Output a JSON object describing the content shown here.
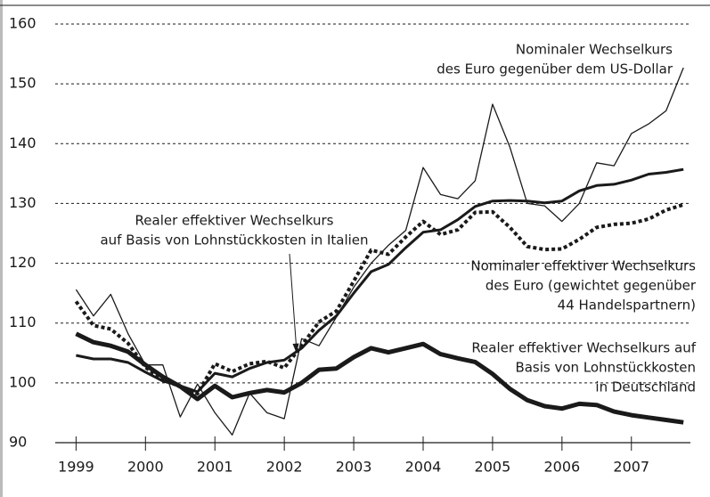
{
  "chart_data": {
    "type": "line",
    "x": [
      1999,
      1999.25,
      1999.5,
      1999.75,
      2000,
      2000.25,
      2000.5,
      2000.75,
      2001,
      2001.25,
      2001.5,
      2001.75,
      2002,
      2002.25,
      2002.5,
      2002.75,
      2003,
      2003.25,
      2003.5,
      2003.75,
      2004,
      2004.25,
      2004.5,
      2004.75,
      2005,
      2005.25,
      2005.5,
      2005.75,
      2006,
      2006.25,
      2006.5,
      2006.75,
      2007,
      2007.25,
      2007.5,
      2007.75
    ],
    "series": [
      {
        "name": [
          "Nominaler Wechselkurs",
          "des Euro gegenüber dem US-Dollar"
        ],
        "color": "#1a1a1a",
        "style": "thin",
        "values": [
          115.6,
          111.2,
          114.8,
          108.2,
          103,
          103,
          94.3,
          99.8,
          95,
          91.3,
          98.3,
          95,
          94,
          107.4,
          106.2,
          111,
          116,
          120,
          123,
          125.5,
          136,
          131.5,
          130.8,
          133.8,
          146.6,
          139.4,
          130,
          129.6,
          127,
          130,
          136.8,
          136.3,
          141.7,
          143.3,
          145.5,
          152.7
        ]
      },
      {
        "name": [
          "Realer effektiver Wechselkurs",
          "auf Basis von Lohnstückkosten in Italien"
        ],
        "color": "#1a1a1a",
        "style": "medium",
        "values": [
          104.6,
          104,
          104,
          103.4,
          101.8,
          100.3,
          99.5,
          98.5,
          101.6,
          101,
          102.4,
          103.4,
          103.8,
          105.8,
          108.8,
          111.2,
          115,
          118.6,
          119.8,
          122.6,
          125.2,
          125.6,
          127.3,
          129.5,
          130.4,
          130.5,
          130.4,
          130.1,
          130.4,
          132.1,
          133,
          133.2,
          133.9,
          134.9,
          135.2,
          135.7
        ]
      },
      {
        "name": [
          "Nominaler effektiver Wechselkurs",
          "des Euro (gewichtet gegenüber",
          "44 Handelspartnern)"
        ],
        "color": "#1a1a1a",
        "style": "dotted",
        "values": [
          113.6,
          109.6,
          109,
          106.6,
          102.6,
          100.5,
          99.4,
          98.2,
          103.2,
          101.9,
          103.2,
          103.6,
          102.5,
          106.2,
          110.2,
          112,
          117,
          122.2,
          121.5,
          124.4,
          127,
          124.8,
          125.6,
          128.5,
          128.6,
          126,
          122.8,
          122.3,
          122.4,
          124,
          126,
          126.5,
          126.7,
          127.4,
          128.9,
          129.8
        ]
      },
      {
        "name": [
          "Realer effektiver Wechselkurs auf",
          "Basis von Lohnstückkosten",
          "in Deutschland"
        ],
        "color": "#1a1a1a",
        "style": "thick",
        "values": [
          108.2,
          106.8,
          106.2,
          105.2,
          103,
          101,
          99.4,
          97.3,
          99.5,
          97.6,
          98.3,
          98.8,
          98.4,
          100,
          102.2,
          102.4,
          104.3,
          105.8,
          105.1,
          105.8,
          106.5,
          104.8,
          104.1,
          103.5,
          101.5,
          99,
          97.1,
          96.1,
          95.7,
          96.5,
          96.3,
          95.2,
          94.6,
          94.2,
          93.8,
          93.4
        ]
      }
    ],
    "xlim": [
      1998.7,
      2007.85
    ],
    "xticks": [
      1999,
      2000,
      2001,
      2002,
      2003,
      2004,
      2005,
      2006,
      2007
    ],
    "ylim": [
      90,
      160
    ],
    "yticks": [
      90,
      100,
      110,
      120,
      130,
      140,
      150,
      160
    ],
    "grid": true
  }
}
